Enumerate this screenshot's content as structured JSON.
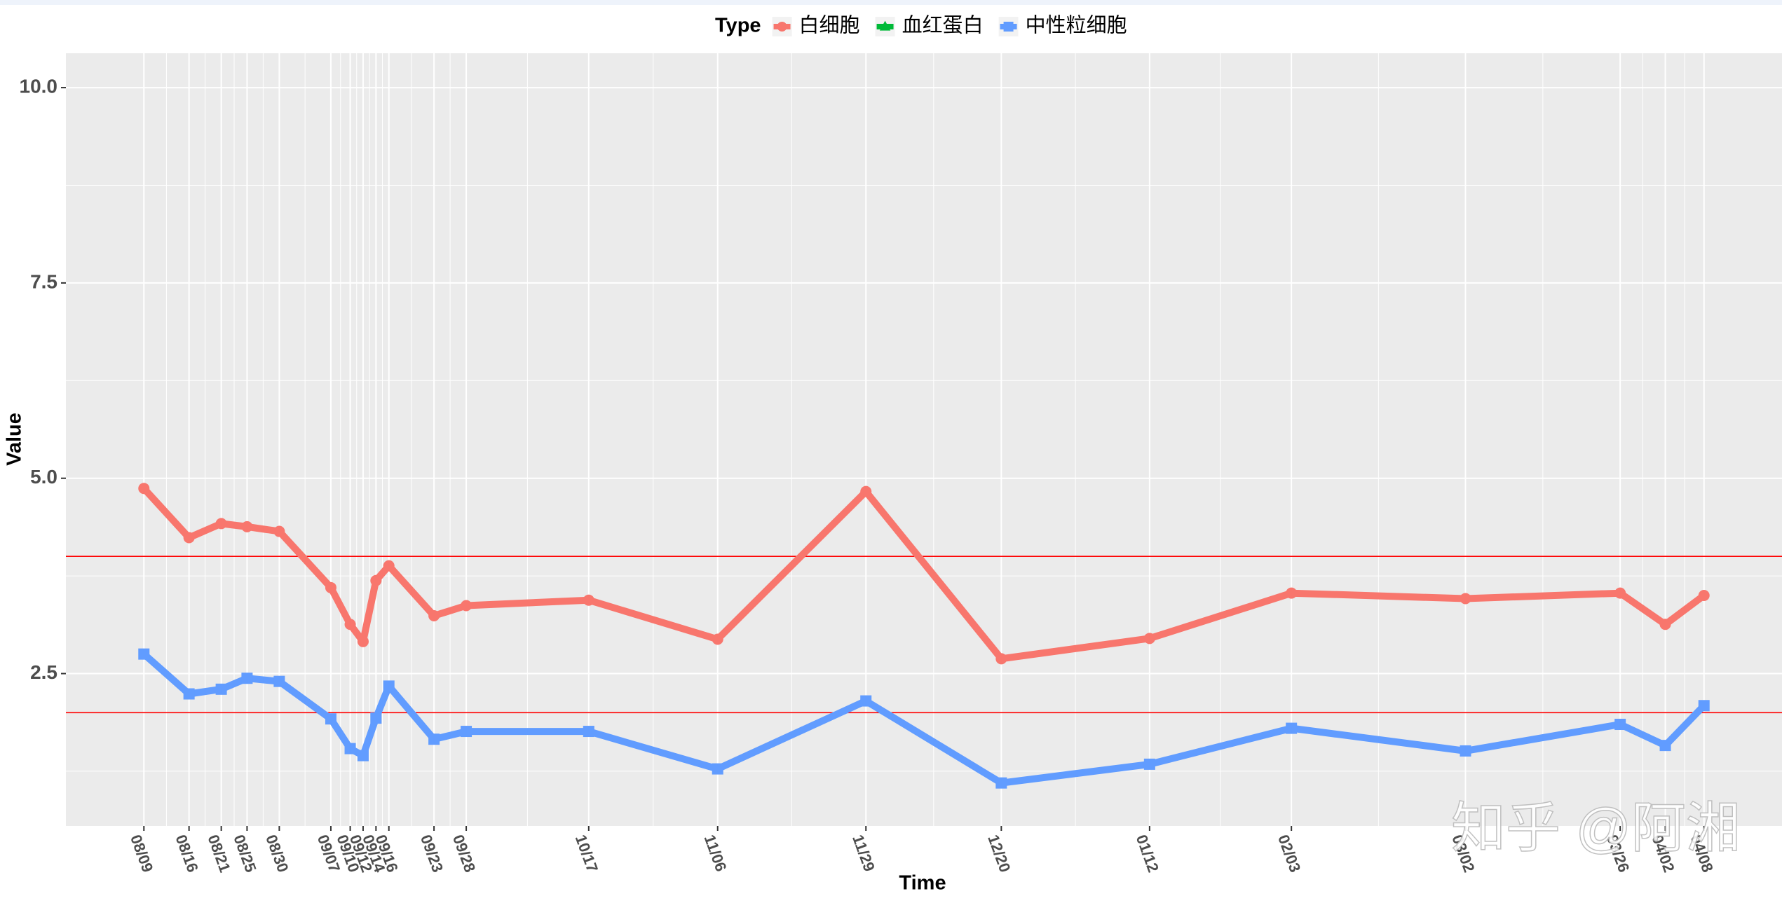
{
  "chart_data": {
    "type": "line",
    "legend_title": "Type",
    "x_label": "Time",
    "y_label": "Value",
    "watermark": "知乎 @阿湘",
    "x": [
      "08/09",
      "08/16",
      "08/21",
      "08/25",
      "08/30",
      "09/07",
      "09/10",
      "09/12",
      "09/14",
      "09/16",
      "09/23",
      "09/28",
      "10/17",
      "11/06",
      "11/29",
      "12/20",
      "01/12",
      "02/03",
      "03/02",
      "03/26",
      "04/02",
      "04/08"
    ],
    "series": [
      {
        "name": "白细胞",
        "color": "#f8766d",
        "marker": "circle",
        "values": [
          4.87,
          4.24,
          4.42,
          4.38,
          4.32,
          3.6,
          3.13,
          2.91,
          3.69,
          3.88,
          3.24,
          3.37,
          3.44,
          2.94,
          4.83,
          2.69,
          2.95,
          3.53,
          3.46,
          3.53,
          3.13,
          3.5
        ]
      },
      {
        "name": "血红蛋白",
        "color": "#00ba38",
        "marker": "triangle",
        "values": [
          null,
          null,
          null,
          null,
          null,
          null,
          null,
          null,
          null,
          null,
          null,
          null,
          null,
          null,
          null,
          null,
          null,
          null,
          null,
          null,
          null,
          null
        ]
      },
      {
        "name": "中性粒细胞",
        "color": "#619cff",
        "marker": "square",
        "values": [
          2.75,
          2.24,
          2.3,
          2.44,
          2.4,
          1.92,
          1.54,
          1.45,
          1.93,
          2.34,
          1.66,
          1.76,
          1.76,
          1.28,
          2.15,
          1.1,
          1.34,
          1.8,
          1.51,
          1.85,
          1.58,
          2.09
        ]
      }
    ],
    "hlines": [
      4,
      2
    ],
    "hline_color": "#ff0000",
    "ylim": [
      0.55,
      10.44
    ],
    "yticks": [
      2.5,
      {
        "value": 5,
        "label": "5.0"
      },
      7.5,
      {
        "value": 10,
        "label": "10.0"
      }
    ],
    "grid": true,
    "legend_position": "top"
  }
}
